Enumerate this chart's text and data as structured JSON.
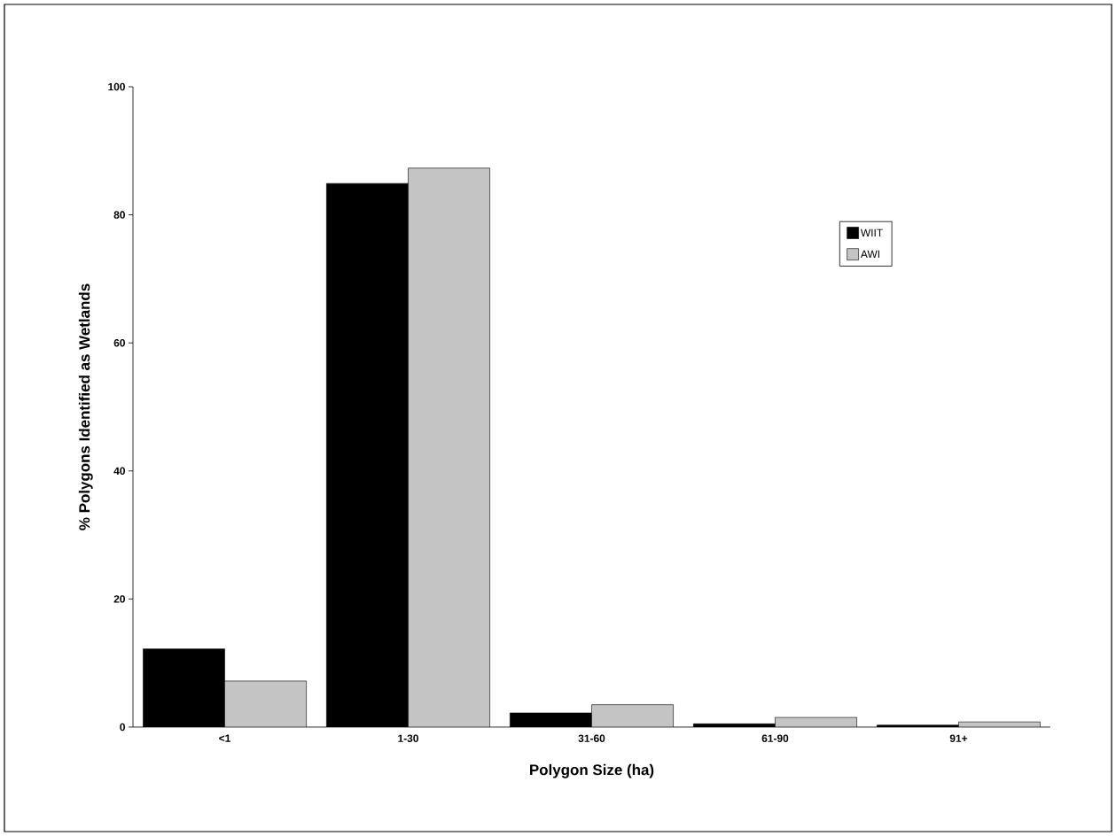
{
  "chart_data": {
    "type": "bar",
    "xlabel": "Polygon Size (ha)",
    "ylabel": "% Polygons Identified as Wetlands",
    "categories": [
      "<1",
      "1-30",
      "31-60",
      "61-90",
      "91+"
    ],
    "series": [
      {
        "name": "WIIT",
        "color": "#000000",
        "values": [
          12.2,
          84.9,
          2.2,
          0.5,
          0.3
        ]
      },
      {
        "name": "AWI",
        "color": "#c4c4c4",
        "values": [
          7.2,
          87.3,
          3.5,
          1.5,
          0.8
        ]
      }
    ],
    "ylim": [
      0,
      100
    ],
    "yticks": [
      0,
      20,
      40,
      60,
      80,
      100
    ],
    "legend": "right"
  }
}
